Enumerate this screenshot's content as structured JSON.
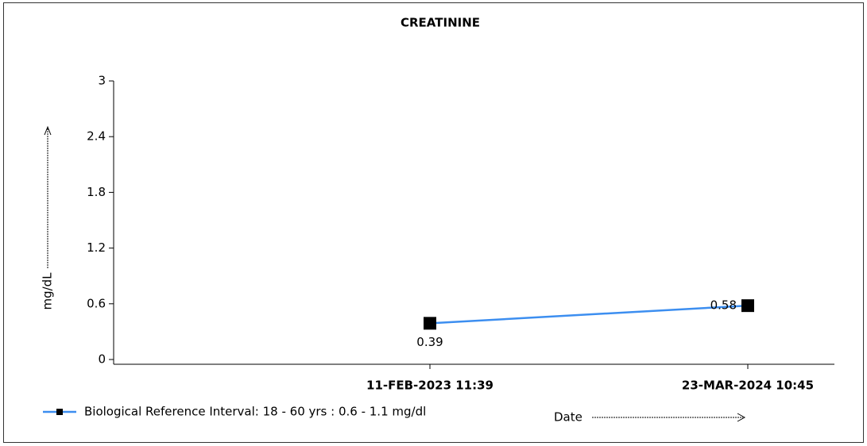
{
  "chart_data": {
    "type": "line",
    "title": "CREATININE",
    "y_label": "mg/dL",
    "x_label": "Date",
    "categories": [
      null,
      "11-FEB-2023 11:39",
      "23-MAR-2024 10:45"
    ],
    "series": [
      {
        "name": "Biological Reference Interval: 18 - 60 yrs : 0.6 - 1.1 mg/dl",
        "color": "#3c8ef0",
        "values": [
          null,
          0.39,
          0.58
        ]
      }
    ],
    "ylim": [
      0,
      3
    ],
    "yticks": [
      0,
      0.6,
      1.2,
      1.8,
      2.4,
      3
    ],
    "legend": "bottom-left"
  }
}
